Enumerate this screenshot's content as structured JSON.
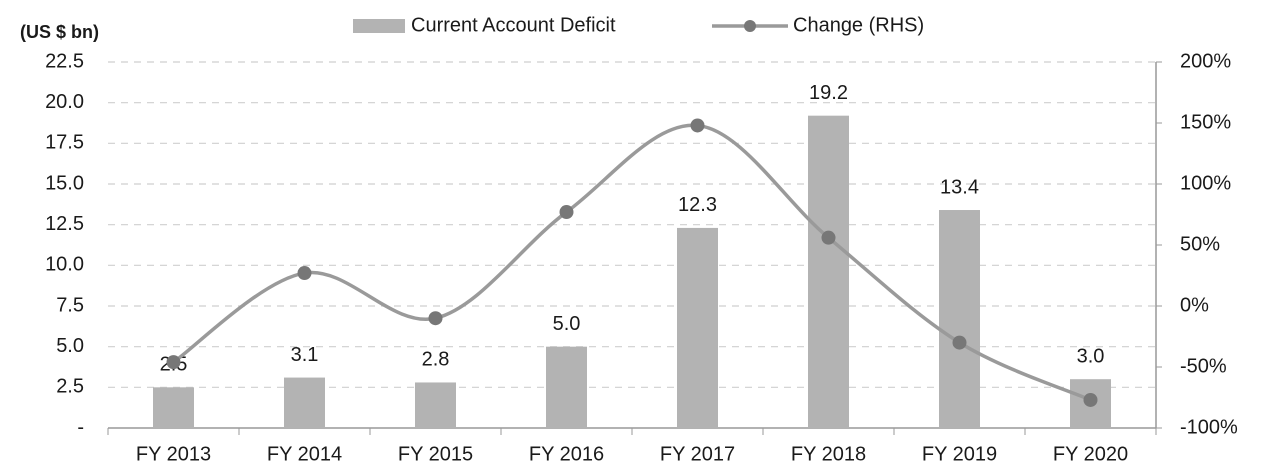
{
  "chart_data": {
    "type": "bar",
    "y_label": "(US $ bn)",
    "categories": [
      "FY 2013",
      "FY 2014",
      "FY 2015",
      "FY 2016",
      "FY 2017",
      "FY 2018",
      "FY 2019",
      "FY 2020"
    ],
    "series": [
      {
        "name": "Current Account Deficit",
        "type": "bar",
        "color": "#b3b3b3",
        "values": [
          2.5,
          3.1,
          2.8,
          5.0,
          12.3,
          19.2,
          13.4,
          3.0
        ],
        "value_labels": [
          "2.5",
          "3.1",
          "2.8",
          "5.0",
          "12.3",
          "19.2",
          "13.4",
          "3.0"
        ]
      },
      {
        "name": "Change (RHS)",
        "type": "line",
        "axis": "y2",
        "color": "#9a9a9a",
        "marker_color": "#777777",
        "values": [
          -46,
          27,
          -10,
          77,
          148,
          56,
          -30,
          -77
        ]
      }
    ],
    "ylim": [
      0,
      22.5
    ],
    "yticks": [
      {
        "value": 0,
        "label": "-"
      },
      2.5,
      {
        "value": 5,
        "label": "5.0"
      },
      7.5,
      {
        "value": 10,
        "label": "10.0"
      },
      12.5,
      {
        "value": 15,
        "label": "15.0"
      },
      17.5,
      {
        "value": 20,
        "label": "20.0"
      },
      22.5
    ],
    "y2lim": [
      -100,
      200
    ],
    "y2ticks": [
      {
        "value": -100,
        "label": "-100%"
      },
      {
        "value": -50,
        "label": "-50%"
      },
      {
        "value": 0,
        "label": "0%"
      },
      {
        "value": 50,
        "label": "50%"
      },
      {
        "value": 100,
        "label": "100%"
      },
      {
        "value": 150,
        "label": "150%"
      },
      {
        "value": 200,
        "label": "200%"
      }
    ],
    "grid": true,
    "legend": "top"
  }
}
